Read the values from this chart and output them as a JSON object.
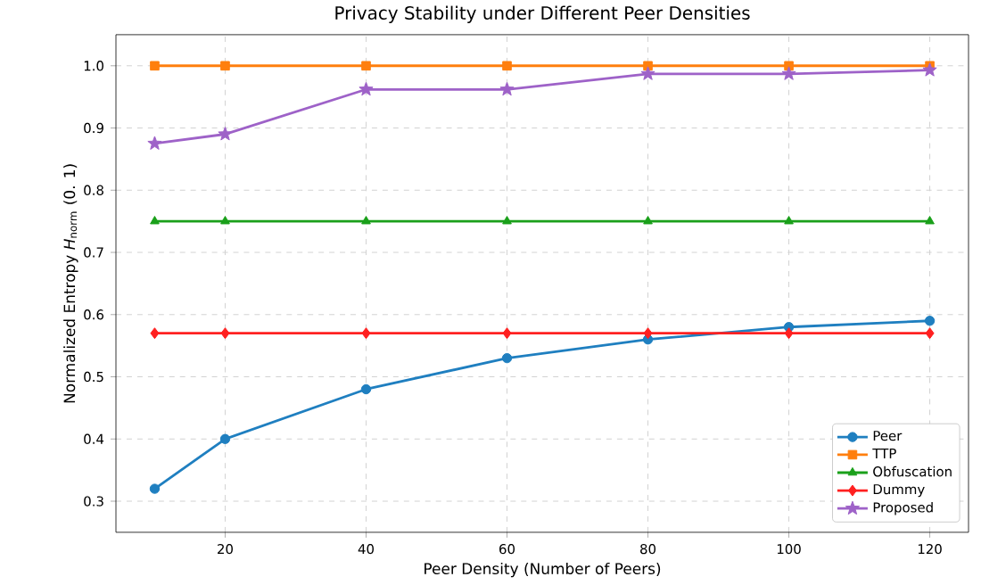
{
  "chart_data": {
    "type": "line",
    "title": "Privacy Stability under Different Peer Densities",
    "xlabel": "Peer Density (Number of Peers)",
    "ylabel": "Normalized Entropy *H*$_{norm}$ (0. 1)",
    "x": [
      10,
      20,
      40,
      60,
      80,
      100,
      120
    ],
    "series": [
      {
        "name": "Peer",
        "color": "#1f7fc0",
        "marker": "circle",
        "values": [
          0.32,
          0.4,
          0.48,
          0.53,
          0.56,
          0.58,
          0.59
        ]
      },
      {
        "name": "TTP",
        "color": "#ff7f0e",
        "marker": "square",
        "values": [
          1.0,
          1.0,
          1.0,
          1.0,
          1.0,
          1.0,
          1.0
        ]
      },
      {
        "name": "Obfuscation",
        "color": "#1aa01a",
        "marker": "triangle",
        "values": [
          0.75,
          0.75,
          0.75,
          0.75,
          0.75,
          0.75,
          0.75
        ]
      },
      {
        "name": "Dummy",
        "color": "#ff2020",
        "marker": "diamond",
        "values": [
          0.57,
          0.57,
          0.57,
          0.57,
          0.57,
          0.57,
          0.57
        ]
      },
      {
        "name": "Proposed",
        "color": "#9e62c8",
        "marker": "star",
        "values": [
          0.875,
          0.89,
          0.962,
          0.962,
          0.987,
          0.987,
          0.993
        ]
      }
    ],
    "xlim": [
      4.5,
      125.5
    ],
    "ylim": [
      0.25,
      1.05
    ],
    "xticks": [
      20,
      40,
      60,
      80,
      100,
      120
    ],
    "yticks": [
      0.3,
      0.4,
      0.5,
      0.6,
      0.7,
      0.8,
      0.9,
      {
        "value": 1.0,
        "label": "1.0"
      }
    ],
    "grid": true,
    "legend": "bottom right",
    "line_style": "solid"
  }
}
